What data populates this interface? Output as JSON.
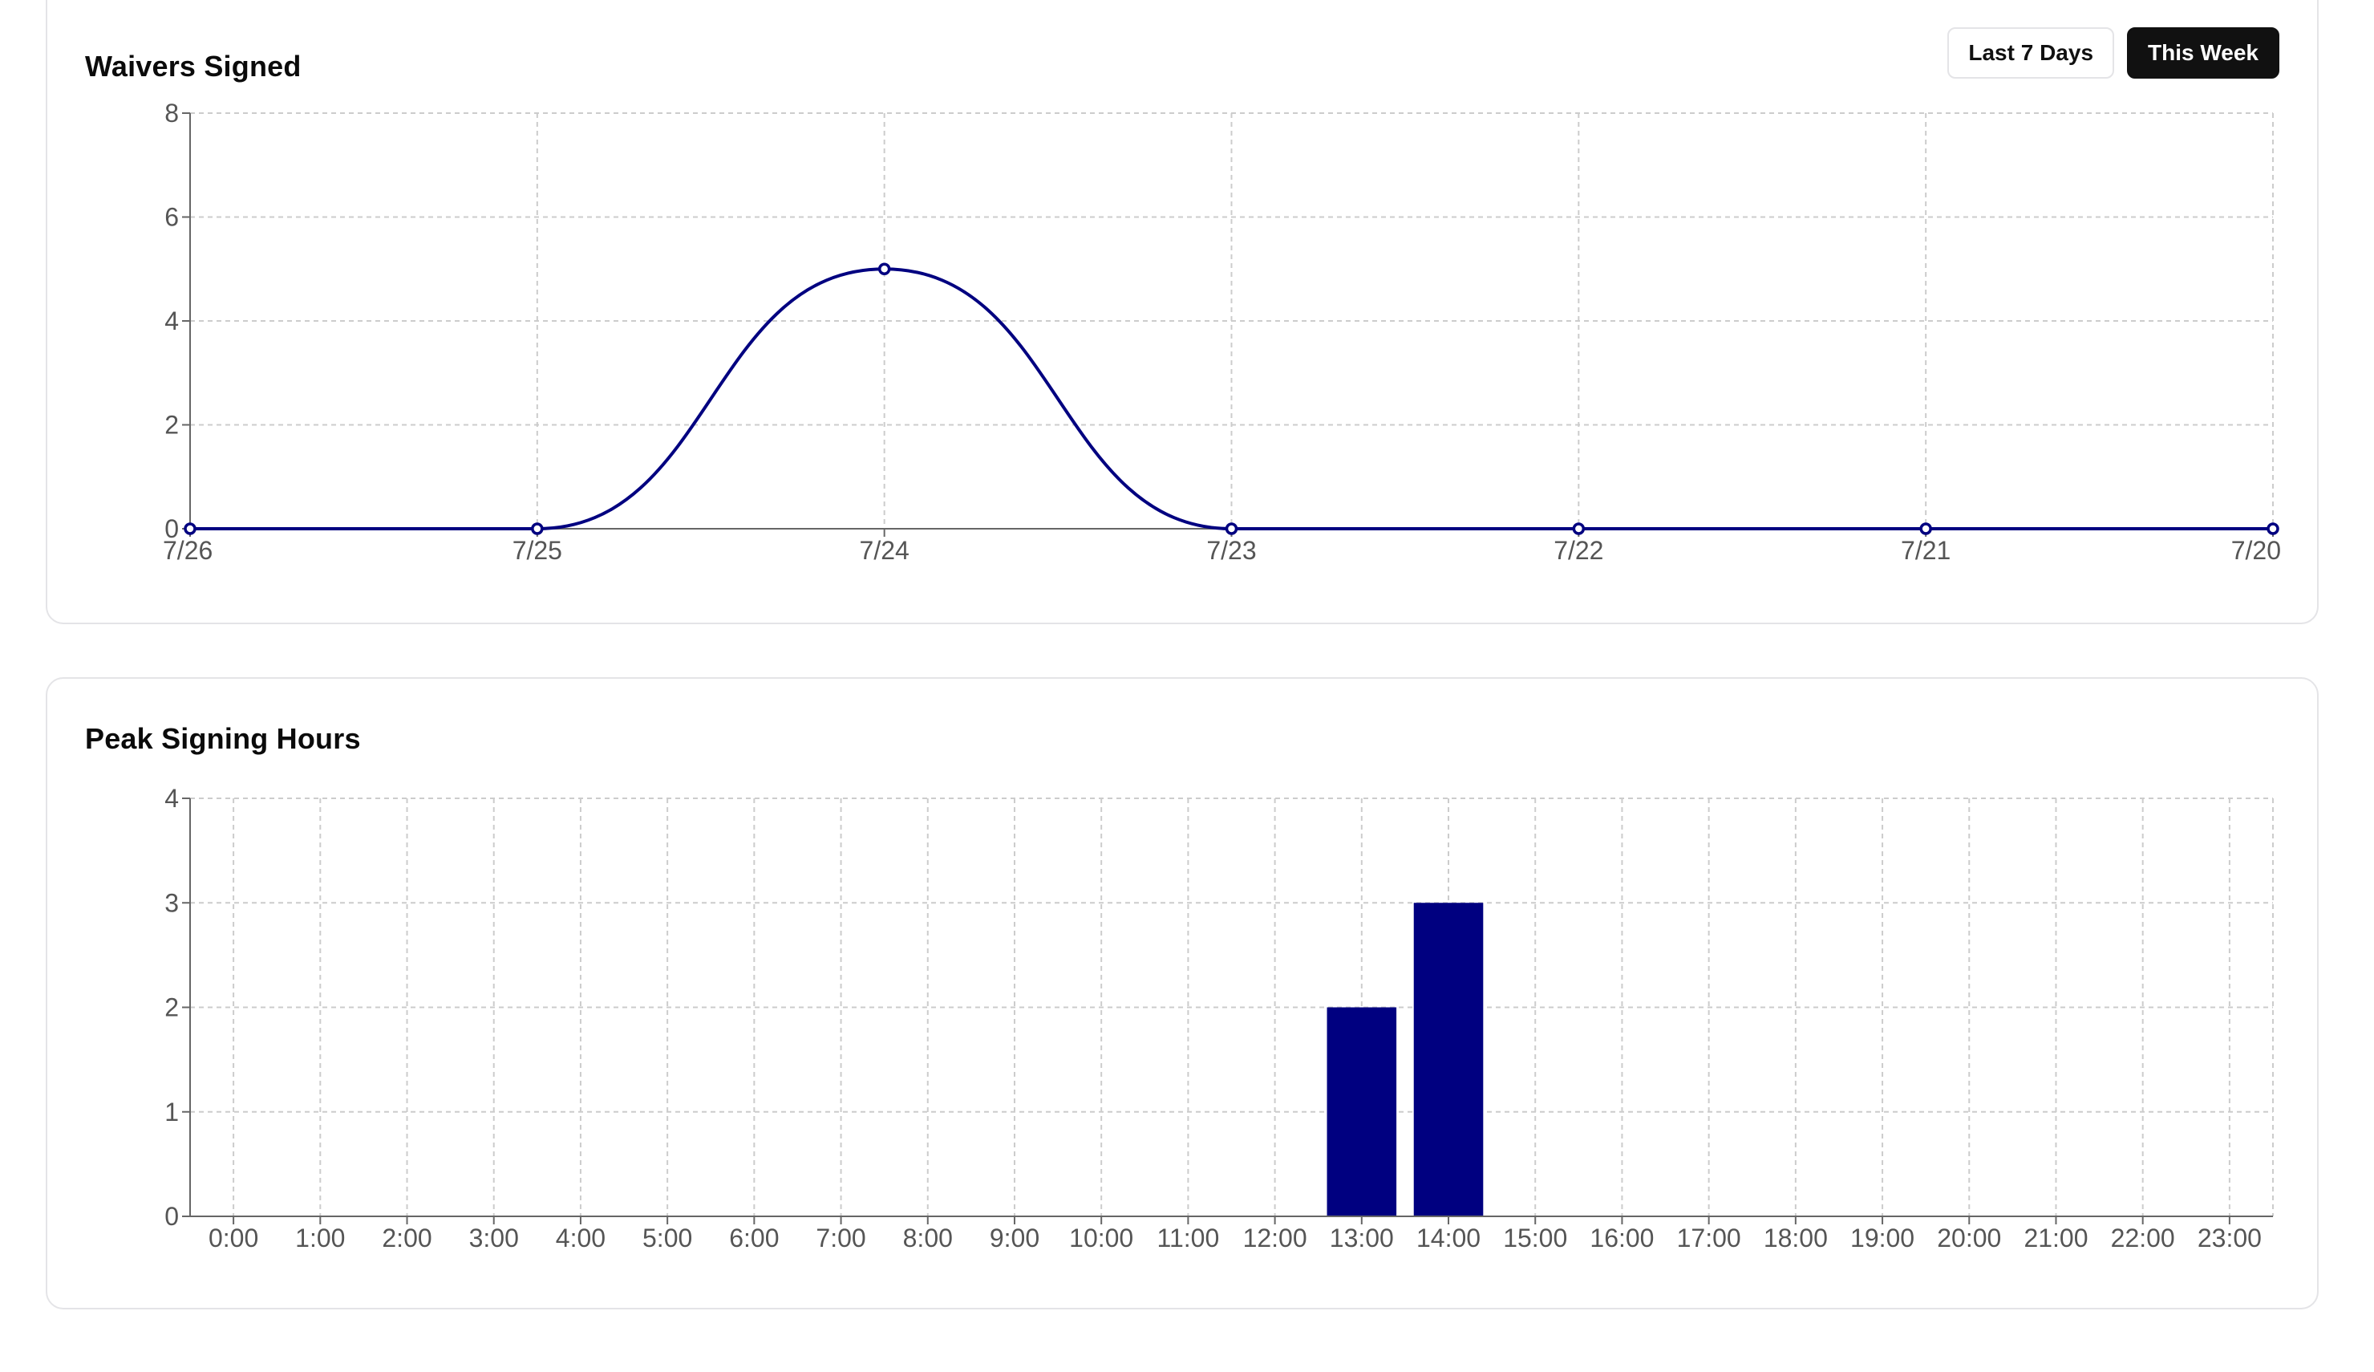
{
  "waivers_card": {
    "title": "Waivers Signed",
    "buttons": {
      "last7": "Last 7 Days",
      "this_week": "This Week"
    },
    "active_range": "This Week"
  },
  "peak_card": {
    "title": "Peak Signing Hours"
  },
  "colors": {
    "series": "#000080",
    "grid": "#cccccc",
    "axis": "#666666",
    "button_active_bg": "#111111"
  },
  "chart_data": [
    {
      "type": "line",
      "title": "Waivers Signed",
      "categories": [
        "7/26",
        "7/25",
        "7/24",
        "7/23",
        "7/22",
        "7/21",
        "7/20"
      ],
      "series": [
        {
          "values": [
            0,
            0,
            5,
            0,
            0,
            0,
            0
          ]
        }
      ],
      "ylim": [
        0,
        8
      ],
      "yticks": [
        0,
        2,
        4,
        6,
        8
      ],
      "grid": true,
      "curve": "smooth",
      "markers": true
    },
    {
      "type": "bar",
      "title": "Peak Signing Hours",
      "categories": [
        "0:00",
        "1:00",
        "2:00",
        "3:00",
        "4:00",
        "5:00",
        "6:00",
        "7:00",
        "8:00",
        "9:00",
        "10:00",
        "11:00",
        "12:00",
        "13:00",
        "14:00",
        "15:00",
        "16:00",
        "17:00",
        "18:00",
        "19:00",
        "20:00",
        "21:00",
        "22:00",
        "23:00"
      ],
      "values": [
        0,
        0,
        0,
        0,
        0,
        0,
        0,
        0,
        0,
        0,
        0,
        0,
        0,
        2,
        3,
        0,
        0,
        0,
        0,
        0,
        0,
        0,
        0,
        0
      ],
      "ylim": [
        0,
        4
      ],
      "yticks": [
        0,
        1,
        2,
        3,
        4
      ],
      "grid": true
    }
  ]
}
